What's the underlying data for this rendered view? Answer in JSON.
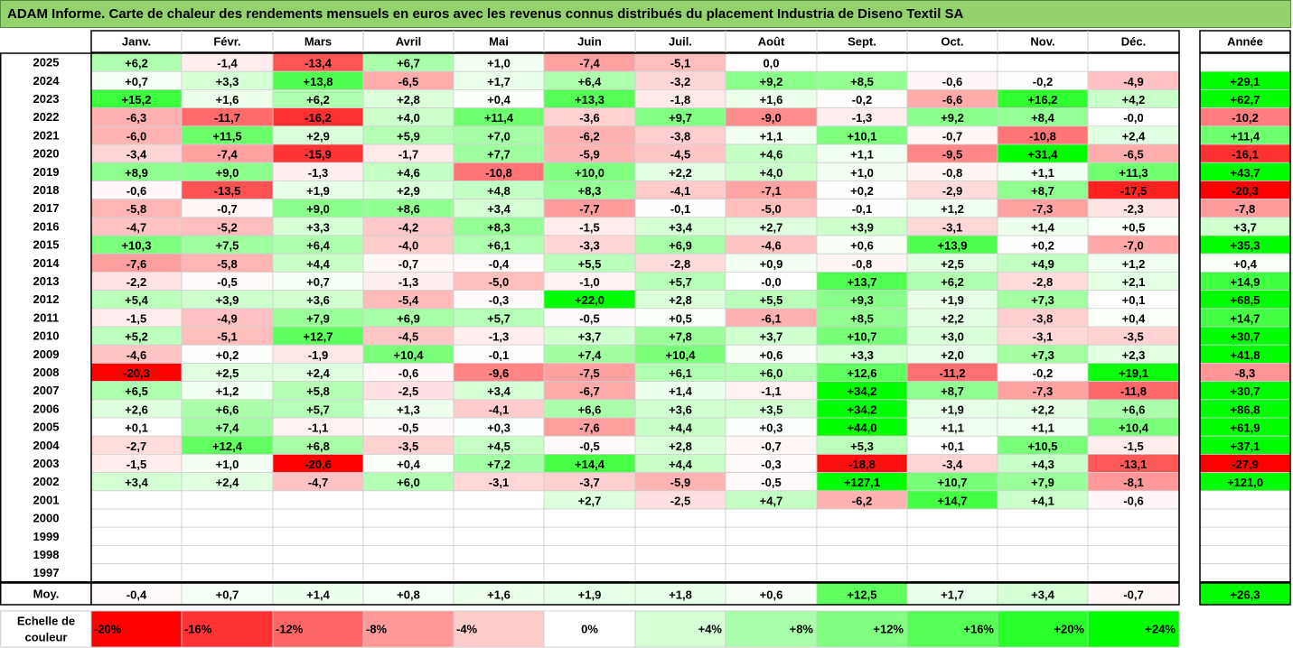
{
  "title": "ADAM Informe. Carte de chaleur des rendements mensuels en euros avec les revenus connus distribués du placement Industria de Diseno Textil SA",
  "chart_data": {
    "type": "heatmap",
    "title": "ADAM Informe. Carte de chaleur des rendements mensuels en euros avec les revenus connus distribués du placement Industria de Diseno Textil SA",
    "months": [
      "Janv.",
      "Févr.",
      "Mars",
      "Avril",
      "Mai",
      "Juin",
      "Juil.",
      "Août",
      "Sept.",
      "Oct.",
      "Nov.",
      "Déc."
    ],
    "year_header": "Année",
    "rows": [
      {
        "year": "2025",
        "values": [
          "+6,2",
          "-1,4",
          "-13,4",
          "+6,7",
          "+1,0",
          "-7,4",
          "-5,1",
          "0,0",
          "",
          "",
          "",
          ""
        ],
        "annual": ""
      },
      {
        "year": "2024",
        "values": [
          "+0,7",
          "+3,3",
          "+13,8",
          "-6,5",
          "+1,7",
          "+6,4",
          "-3,2",
          "+9,2",
          "+8,5",
          "-0,6",
          "-0,2",
          "-4,9"
        ],
        "annual": "+29,1"
      },
      {
        "year": "2023",
        "values": [
          "+15,2",
          "+1,6",
          "+6,2",
          "+2,8",
          "+0,4",
          "+13,3",
          "-1,8",
          "+1,6",
          "-0,2",
          "-6,6",
          "+16,2",
          "+4,2"
        ],
        "annual": "+62,7"
      },
      {
        "year": "2022",
        "values": [
          "-6,3",
          "-11,7",
          "-16,2",
          "+4,0",
          "+11,4",
          "-3,6",
          "+9,7",
          "-9,0",
          "-1,3",
          "+9,2",
          "+8,4",
          "-0,0"
        ],
        "annual": "-10,2"
      },
      {
        "year": "2021",
        "values": [
          "-6,0",
          "+11,5",
          "+2,9",
          "+5,9",
          "+7,0",
          "-6,2",
          "-3,8",
          "+1,1",
          "+10,1",
          "-0,7",
          "-10,8",
          "+2,4"
        ],
        "annual": "+11,4"
      },
      {
        "year": "2020",
        "values": [
          "-3,4",
          "-7,4",
          "-15,9",
          "-1,7",
          "+7,7",
          "-5,9",
          "-4,5",
          "+4,6",
          "+1,1",
          "-9,5",
          "+31,4",
          "-6,5"
        ],
        "annual": "-16,1"
      },
      {
        "year": "2019",
        "values": [
          "+8,9",
          "+9,0",
          "-1,3",
          "+4,6",
          "-10,8",
          "+10,0",
          "+2,2",
          "+4,0",
          "+1,0",
          "-0,8",
          "+1,1",
          "+11,3"
        ],
        "annual": "+43,7"
      },
      {
        "year": "2018",
        "values": [
          "-0,6",
          "-13,5",
          "+1,9",
          "+2,9",
          "+4,8",
          "+8,3",
          "-4,1",
          "-7,1",
          "+0,2",
          "-2,9",
          "+8,7",
          "-17,5"
        ],
        "annual": "-20,3"
      },
      {
        "year": "2017",
        "values": [
          "-5,8",
          "-0,7",
          "+9,0",
          "+8,6",
          "+3,4",
          "-7,7",
          "-0,1",
          "-5,0",
          "-0,1",
          "+1,2",
          "-7,3",
          "-2,3"
        ],
        "annual": "-7,8"
      },
      {
        "year": "2016",
        "values": [
          "-4,7",
          "-5,2",
          "+3,3",
          "-4,2",
          "+8,3",
          "-1,5",
          "+3,4",
          "+2,7",
          "+3,9",
          "-3,1",
          "+1,4",
          "+0,5"
        ],
        "annual": "+3,7"
      },
      {
        "year": "2015",
        "values": [
          "+10,3",
          "+7,5",
          "+6,4",
          "-4,0",
          "+6,1",
          "-3,3",
          "+6,9",
          "-4,6",
          "+0,6",
          "+13,9",
          "+0,2",
          "-7,0"
        ],
        "annual": "+35,3"
      },
      {
        "year": "2014",
        "values": [
          "-7,6",
          "-5,8",
          "+4,4",
          "-0,7",
          "-0,4",
          "+5,5",
          "-2,8",
          "+0,9",
          "-0,8",
          "+2,5",
          "+4,9",
          "+1,2"
        ],
        "annual": "+0,4"
      },
      {
        "year": "2013",
        "values": [
          "-2,2",
          "-0,5",
          "+0,7",
          "-1,3",
          "-5,0",
          "-1,0",
          "+5,7",
          "-0,0",
          "+13,7",
          "+6,2",
          "-2,8",
          "+2,1"
        ],
        "annual": "+14,9"
      },
      {
        "year": "2012",
        "values": [
          "+5,4",
          "+3,9",
          "+3,6",
          "-5,4",
          "-0,3",
          "+22,0",
          "+2,8",
          "+5,5",
          "+9,3",
          "+1,9",
          "+7,3",
          "+0,1"
        ],
        "annual": "+68,5"
      },
      {
        "year": "2011",
        "values": [
          "-1,5",
          "-4,9",
          "+7,9",
          "+6,9",
          "+5,7",
          "-0,5",
          "+0,5",
          "-6,1",
          "+8,5",
          "+2,2",
          "-3,8",
          "+0,4"
        ],
        "annual": "+14,7"
      },
      {
        "year": "2010",
        "values": [
          "+5,2",
          "-5,1",
          "+12,7",
          "-4,5",
          "-1,3",
          "+3,7",
          "+7,8",
          "+3,7",
          "+10,7",
          "+3,0",
          "-3,1",
          "-3,5"
        ],
        "annual": "+30,7"
      },
      {
        "year": "2009",
        "values": [
          "-4,6",
          "+0,2",
          "-1,9",
          "+10,4",
          "-0,1",
          "+7,4",
          "+10,4",
          "+0,6",
          "+3,3",
          "+2,0",
          "+7,3",
          "+2,3"
        ],
        "annual": "+41,8"
      },
      {
        "year": "2008",
        "values": [
          "-20,3",
          "+2,5",
          "+2,4",
          "-0,6",
          "-9,6",
          "-7,5",
          "+6,1",
          "+6,0",
          "+12,6",
          "-11,2",
          "-0,2",
          "+19,1"
        ],
        "annual": "-8,3"
      },
      {
        "year": "2007",
        "values": [
          "+6,5",
          "+1,2",
          "+5,8",
          "-2,5",
          "+3,4",
          "-6,7",
          "+1,4",
          "-1,1",
          "+34,2",
          "+8,7",
          "-7,3",
          "-11,8"
        ],
        "annual": "+30,7"
      },
      {
        "year": "2006",
        "values": [
          "+2,6",
          "+6,6",
          "+5,7",
          "+1,3",
          "-4,1",
          "+6,6",
          "+3,6",
          "+3,5",
          "+34,2",
          "+1,9",
          "+2,2",
          "+6,6"
        ],
        "annual": "+86,8"
      },
      {
        "year": "2005",
        "values": [
          "+0,1",
          "+7,4",
          "-1,1",
          "-0,5",
          "+0,3",
          "-7,6",
          "+4,4",
          "+0,3",
          "+44,0",
          "+1,1",
          "+1,1",
          "+10,4"
        ],
        "annual": "+61,9"
      },
      {
        "year": "2004",
        "values": [
          "-2,7",
          "+12,4",
          "+6,8",
          "-3,5",
          "+4,5",
          "-0,5",
          "+2,8",
          "-0,7",
          "+5,3",
          "+0,1",
          "+10,5",
          "-1,5"
        ],
        "annual": "+37,1"
      },
      {
        "year": "2003",
        "values": [
          "-1,5",
          "+1,0",
          "-20,6",
          "+0,4",
          "+7,2",
          "+14,4",
          "+4,4",
          "-0,3",
          "-18,8",
          "-3,4",
          "+4,3",
          "-13,1"
        ],
        "annual": "-27,9"
      },
      {
        "year": "2002",
        "values": [
          "+3,4",
          "+2,4",
          "-4,7",
          "+6,0",
          "-3,1",
          "-3,7",
          "-5,9",
          "-0,5",
          "+127,1",
          "+10,7",
          "+7,9",
          "-8,1"
        ],
        "annual": "+121,0"
      },
      {
        "year": "2001",
        "values": [
          "",
          "",
          "",
          "",
          "",
          "+2,7",
          "-2,5",
          "+4,7",
          "-6,2",
          "+14,7",
          "+4,1",
          "-0,6"
        ],
        "annual": ""
      },
      {
        "year": "2000",
        "values": [
          "",
          "",
          "",
          "",
          "",
          "",
          "",
          "",
          "",
          "",
          "",
          ""
        ],
        "annual": ""
      },
      {
        "year": "1999",
        "values": [
          "",
          "",
          "",
          "",
          "",
          "",
          "",
          "",
          "",
          "",
          "",
          ""
        ],
        "annual": ""
      },
      {
        "year": "1998",
        "values": [
          "",
          "",
          "",
          "",
          "",
          "",
          "",
          "",
          "",
          "",
          "",
          ""
        ],
        "annual": ""
      },
      {
        "year": "1997",
        "values": [
          "",
          "",
          "",
          "",
          "",
          "",
          "",
          "",
          "",
          "",
          "",
          ""
        ],
        "annual": ""
      }
    ],
    "average": {
      "label": "Moy.",
      "values": [
        "-0,4",
        "+0,7",
        "+1,4",
        "+0,8",
        "+1,6",
        "+1,9",
        "+1,8",
        "+0,6",
        "+12,5",
        "+1,7",
        "+3,4",
        "-0,7"
      ],
      "annual": "+26,3"
    },
    "scale": {
      "label_line1": "Echelle de",
      "label_line2": "couleur",
      "steps": [
        {
          "label": "-20%",
          "value": -20,
          "color": "#ff0000"
        },
        {
          "label": "-16%",
          "value": -16,
          "color": "#ff3333"
        },
        {
          "label": "-12%",
          "value": -12,
          "color": "#ff6666"
        },
        {
          "label": "-8%",
          "value": -8,
          "color": "#ff9999"
        },
        {
          "label": "-4%",
          "value": -4,
          "color": "#ffcccc"
        },
        {
          "label": "0%",
          "value": 0,
          "color": "#ffffff"
        },
        {
          "label": "+4%",
          "value": 4,
          "color": "#d5ffd5"
        },
        {
          "label": "+8%",
          "value": 8,
          "color": "#aaffaa"
        },
        {
          "label": "+12%",
          "value": 12,
          "color": "#80ff80"
        },
        {
          "label": "+16%",
          "value": 16,
          "color": "#55ff55"
        },
        {
          "label": "+20%",
          "value": 20,
          "color": "#2bff2b"
        },
        {
          "label": "+24%",
          "value": 24,
          "color": "#00ff00"
        }
      ]
    },
    "colors": {
      "title_background": "#92d36e",
      "negative": "#ff0000",
      "positive": "#00ff00",
      "neutral": "#ffffff"
    }
  }
}
